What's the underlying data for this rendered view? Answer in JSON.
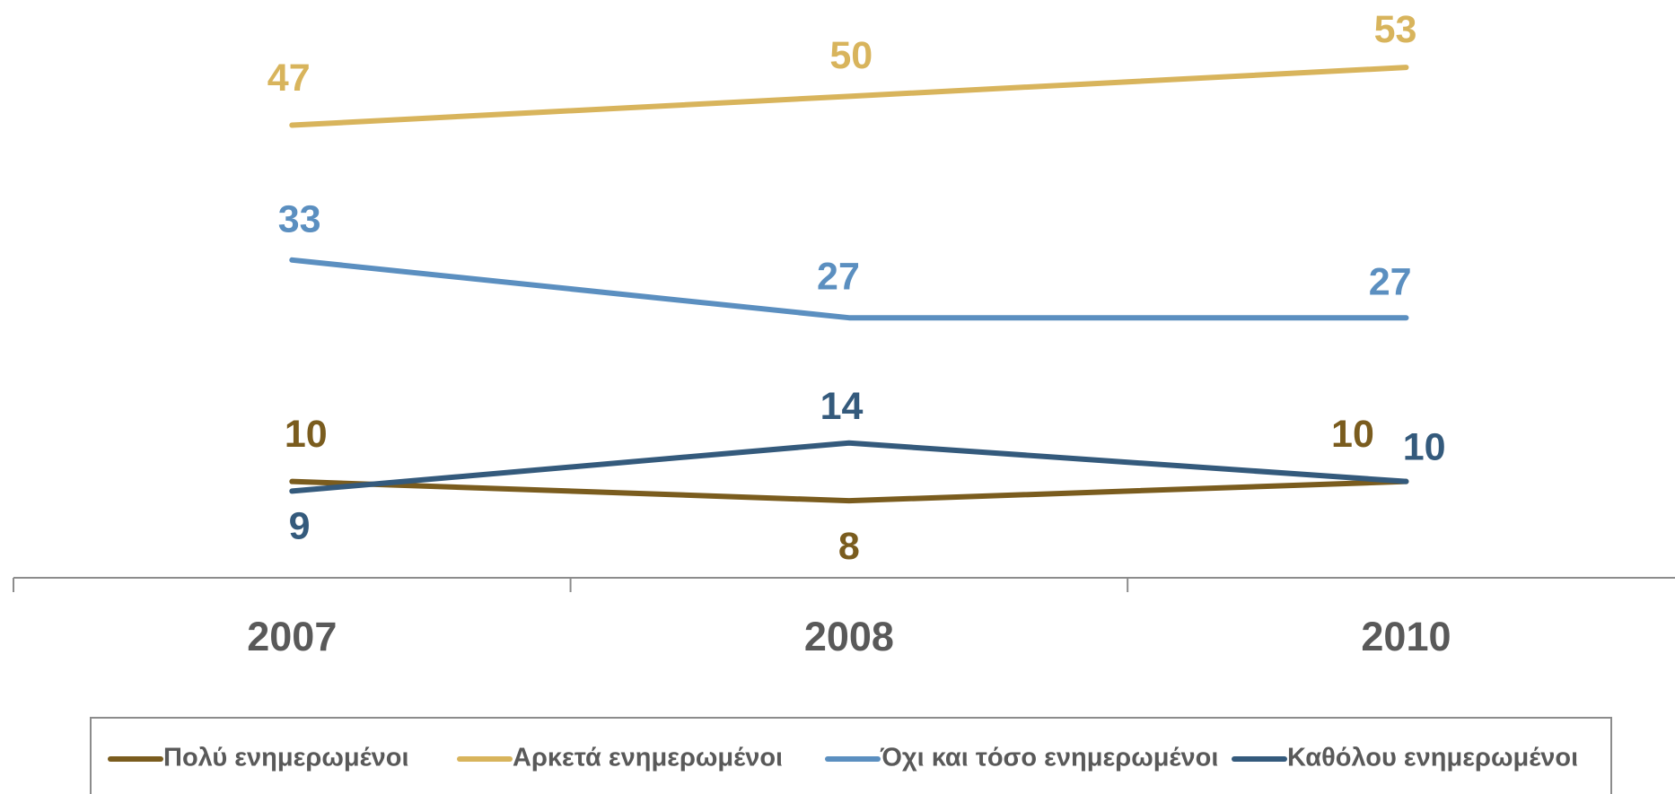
{
  "chart_data": {
    "type": "line",
    "categories": [
      "2007",
      "2008",
      "2010"
    ],
    "series": [
      {
        "name": "Πολύ ενημερωμένοι",
        "color": "#7a5c1e",
        "values": [
          10,
          8,
          10
        ]
      },
      {
        "name": "Αρκετά ενημερωμένοι",
        "color": "#d8b45c",
        "values": [
          47,
          50,
          53
        ]
      },
      {
        "name": "Όχι και τόσο ενημερωμένοι",
        "color": "#5b8fc0",
        "values": [
          33,
          27,
          27
        ]
      },
      {
        "name": "Καθόλου ενημερωμένοι",
        "color": "#345a7c",
        "values": [
          9,
          14,
          10
        ]
      }
    ],
    "ylim": [
      0,
      60
    ],
    "legend": "bottom"
  }
}
